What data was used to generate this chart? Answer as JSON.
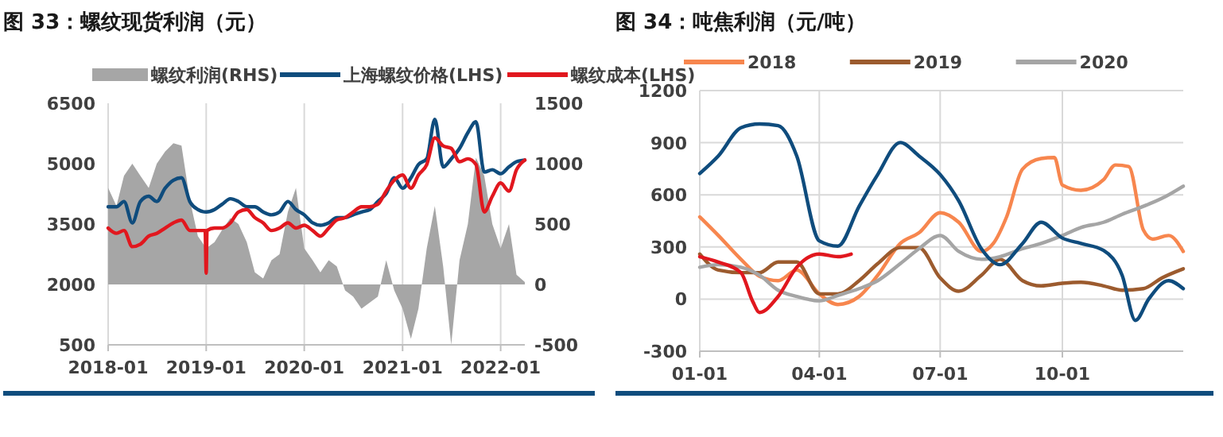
{
  "chart_data": [
    {
      "type": "line",
      "title": "图 33：螺纹现货利润（元）",
      "xlim": [
        "2018-01",
        "2022-04"
      ],
      "xticks": [
        "2018-01",
        "2019-01",
        "2020-01",
        "2021-01",
        "2022-01"
      ],
      "ylim": [
        500,
        6500
      ],
      "yticks": [
        500,
        2000,
        3500,
        5000,
        6500
      ],
      "y2lim": [
        -500,
        1500
      ],
      "y2ticks": [
        -500,
        0,
        500,
        1000,
        1500
      ],
      "grid": "x",
      "legend": "top",
      "x": [
        "2018-01",
        "2018-02",
        "2018-03",
        "2018-04",
        "2018-05",
        "2018-06",
        "2018-07",
        "2018-08",
        "2018-09",
        "2018-10",
        "2018-11",
        "2018-12",
        "2019-01",
        "2019-02",
        "2019-03",
        "2019-04",
        "2019-05",
        "2019-06",
        "2019-07",
        "2019-08",
        "2019-09",
        "2019-10",
        "2019-11",
        "2019-12",
        "2020-01",
        "2020-02",
        "2020-03",
        "2020-04",
        "2020-05",
        "2020-06",
        "2020-07",
        "2020-08",
        "2020-09",
        "2020-10",
        "2020-11",
        "2020-12",
        "2021-01",
        "2021-02",
        "2021-03",
        "2021-04",
        "2021-05",
        "2021-06",
        "2021-07",
        "2021-08",
        "2021-09",
        "2021-10",
        "2021-11",
        "2021-12",
        "2022-01",
        "2022-02",
        "2022-03",
        "2022-04"
      ],
      "series": [
        {
          "name": "螺纹利润(RHS)",
          "type": "area",
          "axis": "y2",
          "color": "#a6a6a6",
          "values": [
            800,
            650,
            900,
            1000,
            900,
            800,
            1000,
            1100,
            1170,
            1150,
            700,
            400,
            300,
            350,
            450,
            550,
            500,
            350,
            100,
            50,
            200,
            250,
            600,
            800,
            300,
            200,
            100,
            200,
            150,
            -50,
            -100,
            -200,
            -150,
            -100,
            200,
            -50,
            -200,
            -450,
            -200,
            300,
            650,
            150,
            -500,
            200,
            500,
            1050,
            900,
            500,
            300,
            500,
            80,
            20
          ]
        },
        {
          "name": "上海螺纹价格(LHS)",
          "color": "#0f4c7d",
          "values": [
            3930,
            3930,
            4060,
            3530,
            4060,
            4190,
            4060,
            4390,
            4590,
            4650,
            4060,
            3860,
            3800,
            3860,
            3990,
            4130,
            4060,
            3930,
            3930,
            3800,
            3730,
            3800,
            4060,
            3860,
            3730,
            3530,
            3470,
            3530,
            3660,
            3660,
            3730,
            3800,
            3860,
            4060,
            4260,
            4650,
            4390,
            4650,
            4980,
            5120,
            6100,
            4920,
            5120,
            5380,
            5770,
            6040,
            4790,
            4850,
            4750,
            4920,
            5050,
            5090
          ]
        },
        {
          "name": "螺纹成本(LHS)",
          "color": "#e1171e",
          "x": [
            "2018-01",
            "2018-02",
            "2018-03",
            "2018-04",
            "2018-05",
            "2018-06",
            "2018-07",
            "2018-08",
            "2018-09",
            "2018-10",
            "2018-11",
            "2018-12",
            "2018-12-28",
            "2019-01-01",
            "2019-01-04",
            "2019-02",
            "2019-03",
            "2019-04",
            "2019-05",
            "2019-06",
            "2019-07",
            "2019-08",
            "2019-09",
            "2019-10",
            "2019-11",
            "2019-12",
            "2020-01",
            "2020-02",
            "2020-03",
            "2020-04",
            "2020-05",
            "2020-06",
            "2020-07",
            "2020-08",
            "2020-09",
            "2020-10",
            "2020-11",
            "2020-12",
            "2021-01",
            "2021-02",
            "2021-03",
            "2021-04",
            "2021-05",
            "2021-06",
            "2021-07",
            "2021-08",
            "2021-09",
            "2021-10",
            "2021-11",
            "2021-12",
            "2022-01",
            "2022-02",
            "2022-03",
            "2022-04"
          ],
          "values": [
            3400,
            3270,
            3340,
            2940,
            3000,
            3200,
            3270,
            3400,
            3530,
            3600,
            3340,
            3340,
            3340,
            2280,
            3340,
            3400,
            3400,
            3530,
            3800,
            3860,
            3660,
            3530,
            3340,
            3400,
            3530,
            3400,
            3470,
            3340,
            3200,
            3400,
            3600,
            3660,
            3800,
            3930,
            3930,
            3990,
            4320,
            4590,
            4720,
            4390,
            4720,
            4980,
            5640,
            5440,
            5380,
            5050,
            5120,
            4980,
            3800,
            4190,
            4520,
            4320,
            4850,
            5090
          ]
        }
      ]
    },
    {
      "type": "line",
      "title": "图 34：吨焦利润（元/吨）",
      "xlim": [
        "--01-01",
        "--12-31"
      ],
      "xticks": [
        {
          "value": "--01-01",
          "label": "01-01"
        },
        {
          "value": "--04-01",
          "label": "04-01"
        },
        {
          "value": "--07-01",
          "label": "07-01"
        },
        {
          "value": "--10-01",
          "label": "10-01"
        }
      ],
      "ylim": [
        -300,
        1200
      ],
      "yticks": [
        -300,
        0,
        300,
        600,
        900,
        1200
      ],
      "grid": true,
      "legend": "top",
      "series": [
        {
          "name": "2018",
          "color": "#f7864e",
          "x": [
            "--01-01",
            "--01-15",
            "--02-01",
            "--02-15",
            "--03-01",
            "--03-15",
            "--04-01",
            "--04-15",
            "--05-01",
            "--05-15",
            "--06-01",
            "--06-15",
            "--07-01",
            "--07-15",
            "--08-01",
            "--08-10",
            "--08-20",
            "--09-01",
            "--09-15",
            "--09-25",
            "--10-01",
            "--10-15",
            "--11-01",
            "--11-10",
            "--11-20",
            "--12-01",
            "--12-08",
            "--12-20",
            "--12-31"
          ],
          "values": [
            473,
            366,
            229,
            131,
            106,
            167,
            30,
            -31,
            15,
            137,
            320,
            381,
            497,
            442,
            274,
            320,
            473,
            748,
            809,
            815,
            656,
            626,
            687,
            772,
            763,
            397,
            345,
            366,
            274
          ]
        },
        {
          "name": "2019",
          "color": "#9c5b2e",
          "x": [
            "--01-01",
            "--01-15",
            "--02-01",
            "--02-15",
            "--03-01",
            "--03-15",
            "--04-01",
            "--04-15",
            "--05-01",
            "--05-15",
            "--06-01",
            "--06-15",
            "--07-01",
            "--07-15",
            "--08-01",
            "--08-15",
            "--09-01",
            "--09-15",
            "--10-01",
            "--10-15",
            "--11-01",
            "--11-15",
            "--12-01",
            "--12-15",
            "--12-31"
          ],
          "values": [
            259,
            167,
            152,
            152,
            213,
            213,
            30,
            30,
            106,
            204,
            296,
            296,
            122,
            45,
            137,
            229,
            106,
            76,
            91,
            97,
            76,
            51,
            60,
            122,
            174
          ]
        },
        {
          "name": "2020",
          "color": "#a5a5a5",
          "x": [
            "--01-01",
            "--01-15",
            "--02-01",
            "--02-15",
            "--03-01",
            "--03-15",
            "--04-01",
            "--04-15",
            "--05-01",
            "--05-15",
            "--06-01",
            "--06-15",
            "--07-01",
            "--07-15",
            "--08-01",
            "--08-15",
            "--09-01",
            "--09-15",
            "--10-01",
            "--10-15",
            "--11-01",
            "--11-15",
            "--12-01",
            "--12-15",
            "--12-31"
          ],
          "values": [
            183,
            198,
            183,
            137,
            51,
            15,
            -10,
            21,
            60,
            106,
            204,
            290,
            366,
            274,
            229,
            244,
            290,
            320,
            366,
            412,
            442,
            488,
            534,
            580,
            650
          ]
        },
        {
          "color": "#0f4c7d",
          "x": [
            "--01-01",
            "--01-15",
            "--02-01",
            "--02-15",
            "--03-01",
            "--03-15",
            "--04-01",
            "--04-15",
            "--05-01",
            "--05-15",
            "--06-01",
            "--06-15",
            "--07-01",
            "--07-15",
            "--08-01",
            "--08-15",
            "--09-01",
            "--09-15",
            "--10-01",
            "--10-15",
            "--11-01",
            "--11-15",
            "--11-25",
            "--12-05",
            "--12-20",
            "--12-31"
          ],
          "values": [
            723,
            824,
            986,
            1008,
            998,
            824,
            335,
            305,
            534,
            717,
            901,
            824,
            717,
            565,
            290,
            198,
            320,
            442,
            351,
            320,
            280,
            137,
            -123,
            0,
            106,
            60
          ]
        },
        {
          "color": "#e1171e",
          "x": [
            "--01-01",
            "--01-15",
            "--02-01",
            "--02-10",
            "--02-15",
            "--03-01",
            "--03-15",
            "--04-01",
            "--04-15",
            "--04-25"
          ],
          "values": [
            244,
            213,
            152,
            -16,
            -77,
            15,
            183,
            259,
            244,
            259
          ]
        }
      ]
    }
  ]
}
